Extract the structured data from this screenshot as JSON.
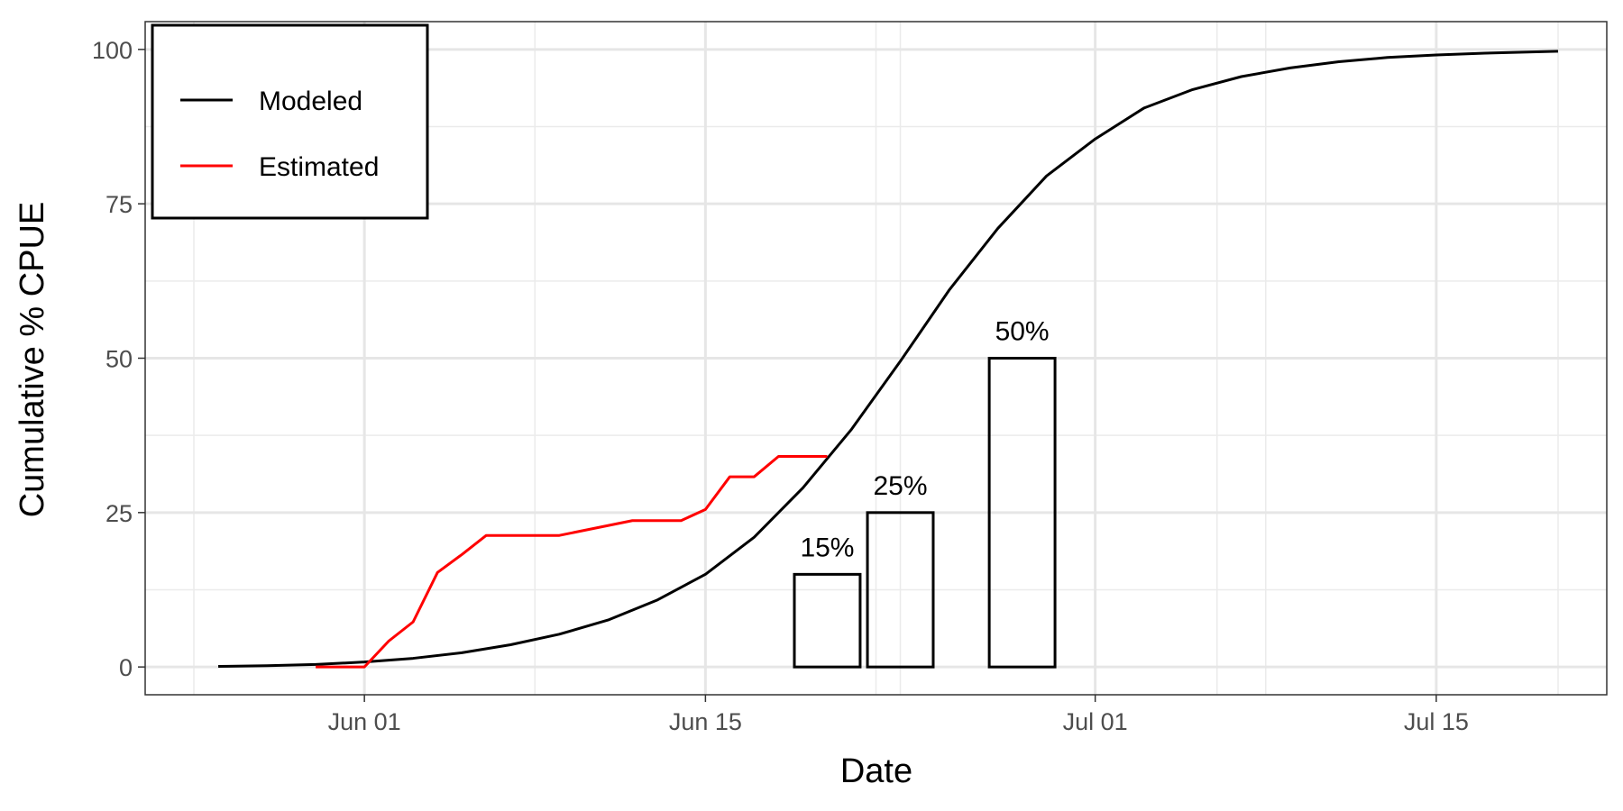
{
  "chart_data": {
    "type": "line",
    "xlabel": "Date",
    "ylabel": "Cumulative % CPUE",
    "xlim": [
      "2021-05-23",
      "2021-07-22"
    ],
    "ylim": [
      -4.5,
      104.5
    ],
    "x_ticks": [
      {
        "date": "2021-06-01",
        "label": "Jun 01"
      },
      {
        "date": "2021-06-15",
        "label": "Jun 15"
      },
      {
        "date": "2021-07-01",
        "label": "Jul 01"
      },
      {
        "date": "2021-07-15",
        "label": "Jul 15"
      }
    ],
    "y_ticks": [
      0,
      25,
      50,
      75,
      100
    ],
    "grid": true,
    "legend": {
      "position": "top-left",
      "entries": [
        {
          "label": "Modeled",
          "color": "#000000"
        },
        {
          "label": "Estimated",
          "color": "#ff0000"
        }
      ]
    },
    "series": [
      {
        "name": "Modeled",
        "color": "#000000",
        "points": [
          [
            "2021-05-26",
            0.1
          ],
          [
            "2021-05-28",
            0.2
          ],
          [
            "2021-05-30",
            0.4
          ],
          [
            "2021-06-01",
            0.8
          ],
          [
            "2021-06-03",
            1.4
          ],
          [
            "2021-06-05",
            2.3
          ],
          [
            "2021-06-07",
            3.6
          ],
          [
            "2021-06-09",
            5.3
          ],
          [
            "2021-06-11",
            7.6
          ],
          [
            "2021-06-13",
            10.8
          ],
          [
            "2021-06-15",
            15.0
          ],
          [
            "2021-06-17",
            21.0
          ],
          [
            "2021-06-19",
            29.0
          ],
          [
            "2021-06-21",
            38.5
          ],
          [
            "2021-06-23",
            49.5
          ],
          [
            "2021-06-25",
            61.0
          ],
          [
            "2021-06-27",
            71.0
          ],
          [
            "2021-06-29",
            79.5
          ],
          [
            "2021-07-01",
            85.5
          ],
          [
            "2021-07-03",
            90.5
          ],
          [
            "2021-07-05",
            93.5
          ],
          [
            "2021-07-07",
            95.6
          ],
          [
            "2021-07-09",
            97.0
          ],
          [
            "2021-07-11",
            98.0
          ],
          [
            "2021-07-13",
            98.7
          ],
          [
            "2021-07-15",
            99.1
          ],
          [
            "2021-07-17",
            99.4
          ],
          [
            "2021-07-20",
            99.7
          ]
        ]
      },
      {
        "name": "Estimated",
        "color": "#ff0000",
        "points": [
          [
            "2021-05-30",
            0
          ],
          [
            "2021-06-01",
            0
          ],
          [
            "2021-06-02",
            4.2
          ],
          [
            "2021-06-03",
            7.3
          ],
          [
            "2021-06-04",
            15.3
          ],
          [
            "2021-06-05",
            18.2
          ],
          [
            "2021-06-06",
            21.3
          ],
          [
            "2021-06-09",
            21.3
          ],
          [
            "2021-06-12",
            23.7
          ],
          [
            "2021-06-14",
            23.7
          ],
          [
            "2021-06-15",
            25.5
          ],
          [
            "2021-06-16",
            30.8
          ],
          [
            "2021-06-17",
            30.8
          ],
          [
            "2021-06-18",
            34.1
          ],
          [
            "2021-06-20",
            34.1
          ]
        ]
      }
    ],
    "bars": [
      {
        "x0": "2021-06-18.65",
        "x1": "2021-06-21.35",
        "value": 15,
        "label": "15%"
      },
      {
        "x0": "2021-06-21.65",
        "x1": "2021-06-24.35",
        "value": 25,
        "label": "25%"
      },
      {
        "x0": "2021-06-26.65",
        "x1": "2021-06-29.35",
        "value": 50,
        "label": "50%"
      }
    ]
  }
}
